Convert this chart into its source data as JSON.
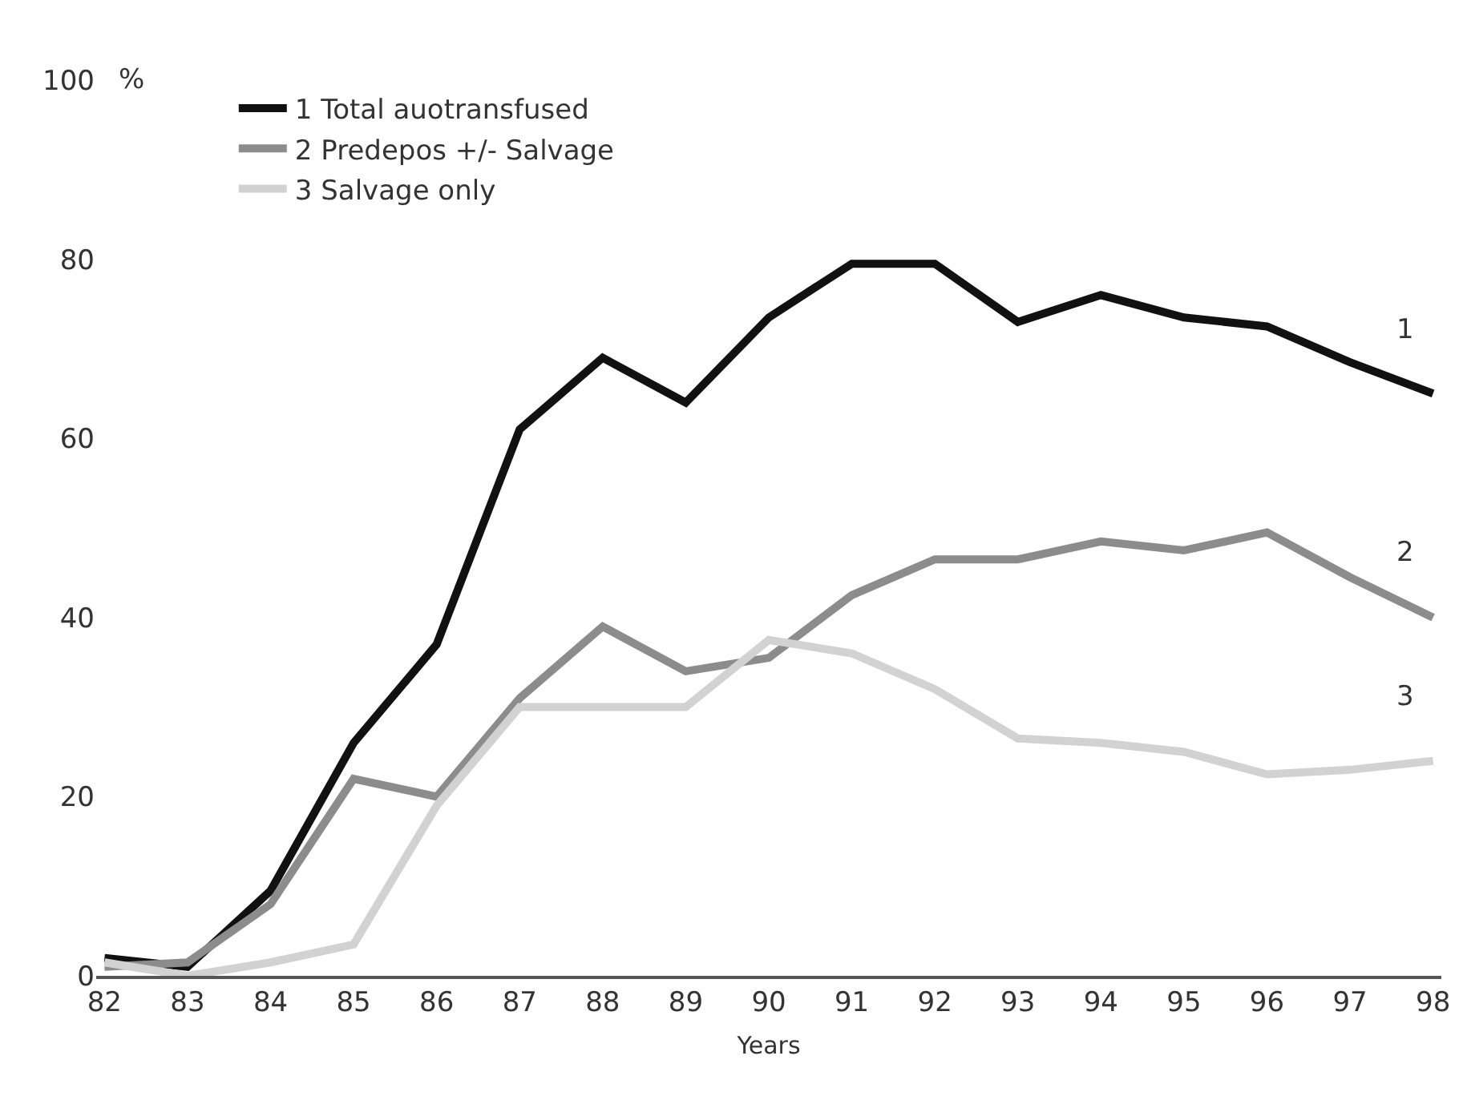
{
  "chart_data": {
    "type": "line",
    "xlabel": "Years",
    "ylabel": "%",
    "x": [
      82,
      83,
      84,
      85,
      86,
      87,
      88,
      89,
      90,
      91,
      92,
      93,
      94,
      95,
      96,
      97,
      98
    ],
    "series": [
      {
        "name": "1 Total auotransfused",
        "color": "#111111",
        "values": [
          2,
          1,
          9.5,
          26,
          37,
          61,
          69,
          64,
          73.5,
          79.5,
          79.5,
          73,
          76,
          73.5,
          72.5,
          68.5,
          65
        ]
      },
      {
        "name": "2 Predepos +/- Salvage",
        "color": "#8c8c8c",
        "values": [
          1,
          1.5,
          8,
          22,
          20,
          31,
          39,
          34,
          35.5,
          42.5,
          46.5,
          46.5,
          48.5,
          47.5,
          49.5,
          44.5,
          40
        ]
      },
      {
        "name": "3 Salvage only",
        "color": "#d2d2d2",
        "values": [
          1.5,
          0,
          1.5,
          3.5,
          19,
          30,
          30,
          30,
          37.5,
          36,
          32,
          26.5,
          26,
          25,
          22.5,
          23,
          24
        ]
      }
    ],
    "annotations": [
      "1",
      "2",
      "3"
    ],
    "xlim": [
      81.9,
      98.1
    ],
    "xticks": [
      82,
      83,
      84,
      85,
      86,
      87,
      88,
      89,
      90,
      91,
      92,
      93,
      94,
      95,
      96,
      97,
      98
    ],
    "ylim": [
      0,
      100
    ],
    "yticks": [
      0,
      20,
      40,
      60,
      80,
      100
    ],
    "grid": false,
    "legend": "top left",
    "marker": "none",
    "line_style": "solid"
  }
}
